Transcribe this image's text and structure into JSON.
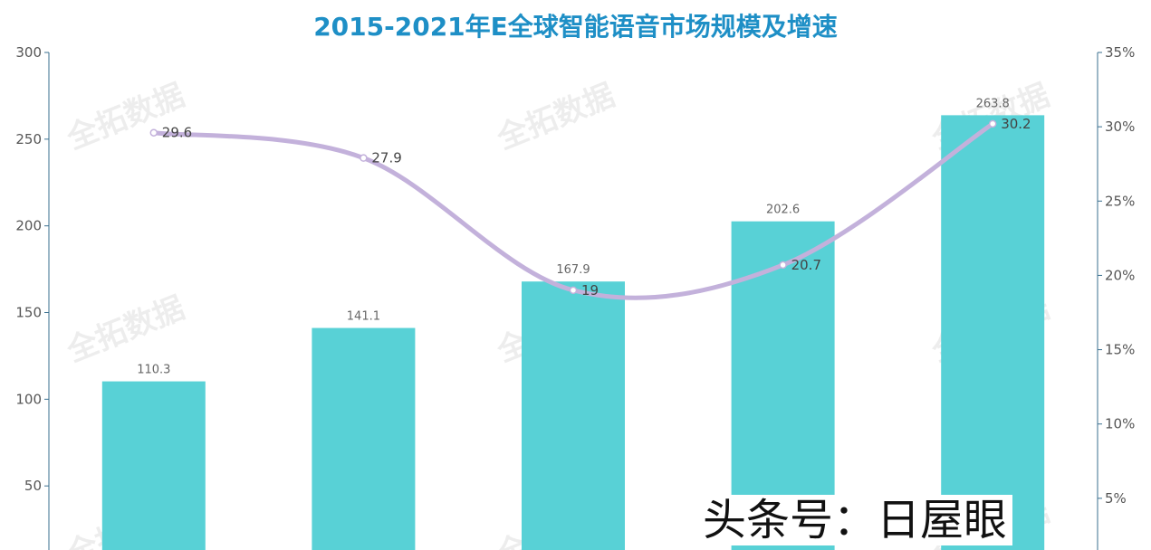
{
  "title": "2015-2021年E全球智能语音市场规模及增速",
  "watermark": "全拓数据",
  "overlay_text": "头条号：日屋眼",
  "chart_data": {
    "type": "bar+line",
    "title": "2015-2021年E全球智能语音市场规模及增速",
    "categories": [
      "",
      "",
      "",
      "",
      ""
    ],
    "bar_series": {
      "values": [
        110.3,
        141.1,
        167.9,
        202.6,
        263.8
      ],
      "color": "#58d1d6"
    },
    "line_series": {
      "values": [
        29.6,
        27.9,
        19,
        20.7,
        30.2
      ],
      "color": "#c3b1db"
    },
    "y_left": {
      "min": 0,
      "max": 300,
      "ticks": [
        50,
        100,
        150,
        200,
        250,
        300
      ]
    },
    "y_right": {
      "min": 0,
      "max": 35,
      "ticks": [
        "5%",
        "10%",
        "15%",
        "20%",
        "25%",
        "30%",
        "35%"
      ],
      "unit": "%"
    },
    "grid": false,
    "legend": "none"
  }
}
